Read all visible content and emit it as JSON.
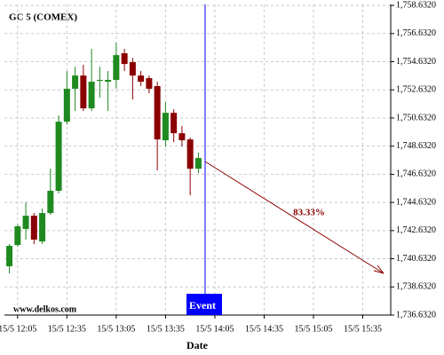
{
  "chart_data": {
    "type": "candlestick",
    "title": "GC 5 (COMEX)",
    "x_label": "Date",
    "watermark": "www.delkos.com",
    "event_label": "Event",
    "forecast_label": "83.33%",
    "up_color": "#1f8a1f",
    "down_color": "#8b0000",
    "event_color": "#0000ff",
    "forecast_color": "#8b0000",
    "grid": true,
    "x": [
      "15/5 12:00",
      "15/5 12:05",
      "15/5 12:10",
      "15/5 12:15",
      "15/5 12:20",
      "15/5 12:25",
      "15/5 12:30",
      "15/5 12:35",
      "15/5 12:40",
      "15/5 12:45",
      "15/5 12:50",
      "15/5 12:55",
      "15/5 13:00",
      "15/5 13:05",
      "15/5 13:10",
      "15/5 13:15",
      "15/5 13:20",
      "15/5 13:25",
      "15/5 13:30",
      "15/5 13:35",
      "15/5 13:40",
      "15/5 13:45",
      "15/5 13:50",
      "15/5 13:55"
    ],
    "open": [
      1740.1,
      1741.61,
      1742.75,
      1743.69,
      1741.86,
      1743.88,
      1745.46,
      1750.37,
      1752.71,
      1753.65,
      1751.32,
      1753.27,
      1753.21,
      1753.34,
      1755.23,
      1754.6,
      1753.65,
      1753.46,
      1752.9,
      1749.05,
      1751.0,
      1749.55,
      1749.11,
      1747.03
    ],
    "high": [
      1741.68,
      1743.06,
      1744.64,
      1743.88,
      1744.2,
      1747.03,
      1750.82,
      1753.97,
      1754.28,
      1754.41,
      1755.54,
      1754.28,
      1753.97,
      1755.98,
      1755.54,
      1754.91,
      1753.97,
      1753.65,
      1753.21,
      1751.76,
      1751.26,
      1750.06,
      1749.23,
      1748.17
    ],
    "low": [
      1739.6,
      1741.49,
      1741.99,
      1741.68,
      1741.68,
      1743.76,
      1745.27,
      1750.18,
      1751.13,
      1751.13,
      1751.13,
      1752.08,
      1751.13,
      1752.71,
      1753.97,
      1751.95,
      1752.9,
      1752.39,
      1746.91,
      1748.61,
      1748.92,
      1748.61,
      1745.14,
      1746.72
    ],
    "close": [
      1741.55,
      1742.94,
      1743.69,
      1741.99,
      1743.88,
      1745.46,
      1750.37,
      1752.71,
      1753.65,
      1751.32,
      1753.21,
      1753.34,
      1753.34,
      1755.1,
      1754.47,
      1753.65,
      1753.21,
      1752.71,
      1749.11,
      1751.0,
      1749.55,
      1749.05,
      1747.03,
      1747.79
    ],
    "xlim": [
      "15/5 11:57",
      "15/5 15:52"
    ],
    "xticks": [
      "15/5 12:05",
      "15/5 12:35",
      "15/5 13:05",
      "15/5 13:35",
      "15/5 14:05",
      "15/5 14:35",
      "15/5 15:05",
      "15/5 15:35"
    ],
    "ylim": [
      1736.632,
      1758.7
    ],
    "yticks": [
      {
        "value": 1736.632,
        "label": "1,736.6320"
      },
      {
        "value": 1738.632,
        "label": "1,738.6320"
      },
      {
        "value": 1740.632,
        "label": "1,740.6320"
      },
      {
        "value": 1742.632,
        "label": "1,742.6320"
      },
      {
        "value": 1744.632,
        "label": "1,744.6320"
      },
      {
        "value": 1746.632,
        "label": "1,746.6320"
      },
      {
        "value": 1748.632,
        "label": "1,748.6320"
      },
      {
        "value": 1750.632,
        "label": "1,750.6320"
      },
      {
        "value": 1752.632,
        "label": "1,752.6320"
      },
      {
        "value": 1754.632,
        "label": "1,754.6320"
      },
      {
        "value": 1756.632,
        "label": "1,756.6320"
      },
      {
        "value": 1758.632,
        "label": "1,758.6320"
      }
    ]
  }
}
